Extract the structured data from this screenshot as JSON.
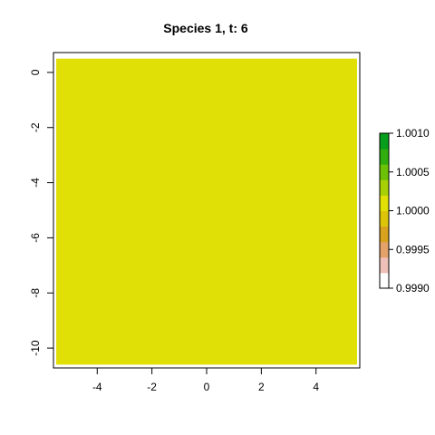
{
  "chart_data": {
    "type": "heatmap",
    "title": "Species 1, t: 6",
    "xlabel": "",
    "ylabel": "",
    "xlim": [
      -5.6,
      5.6
    ],
    "ylim": [
      -10.72,
      0.72
    ],
    "raster": {
      "x": [
        -5.5,
        5.5
      ],
      "y": [
        -10.6,
        0.5
      ],
      "value": 1.0,
      "color": "#e0e006"
    },
    "x_ticks": [
      -4,
      -2,
      0,
      2,
      4
    ],
    "x_tick_labels": [
      "-4",
      "-2",
      "0",
      "2",
      "4"
    ],
    "y_ticks": [
      0,
      -2,
      -4,
      -6,
      -8,
      -10
    ],
    "y_tick_labels": [
      "0",
      "-2",
      "-4",
      "-6",
      "-8",
      "-10"
    ],
    "legend": {
      "placement": "right",
      "range": [
        0.999,
        1.001
      ],
      "ticks": [
        1.001,
        1.0005,
        1.0,
        0.9995,
        0.999
      ],
      "tick_labels": [
        "1.0010",
        "1.0005",
        "1.0000",
        "0.9995",
        "0.9990"
      ],
      "colors": [
        "#ffffff",
        "#efc0b8",
        "#e3a26a",
        "#d7a21e",
        "#dcc40a",
        "#e0e006",
        "#a8d006",
        "#6cc006",
        "#30ae0e",
        "#069e1a"
      ]
    },
    "grid": false
  }
}
